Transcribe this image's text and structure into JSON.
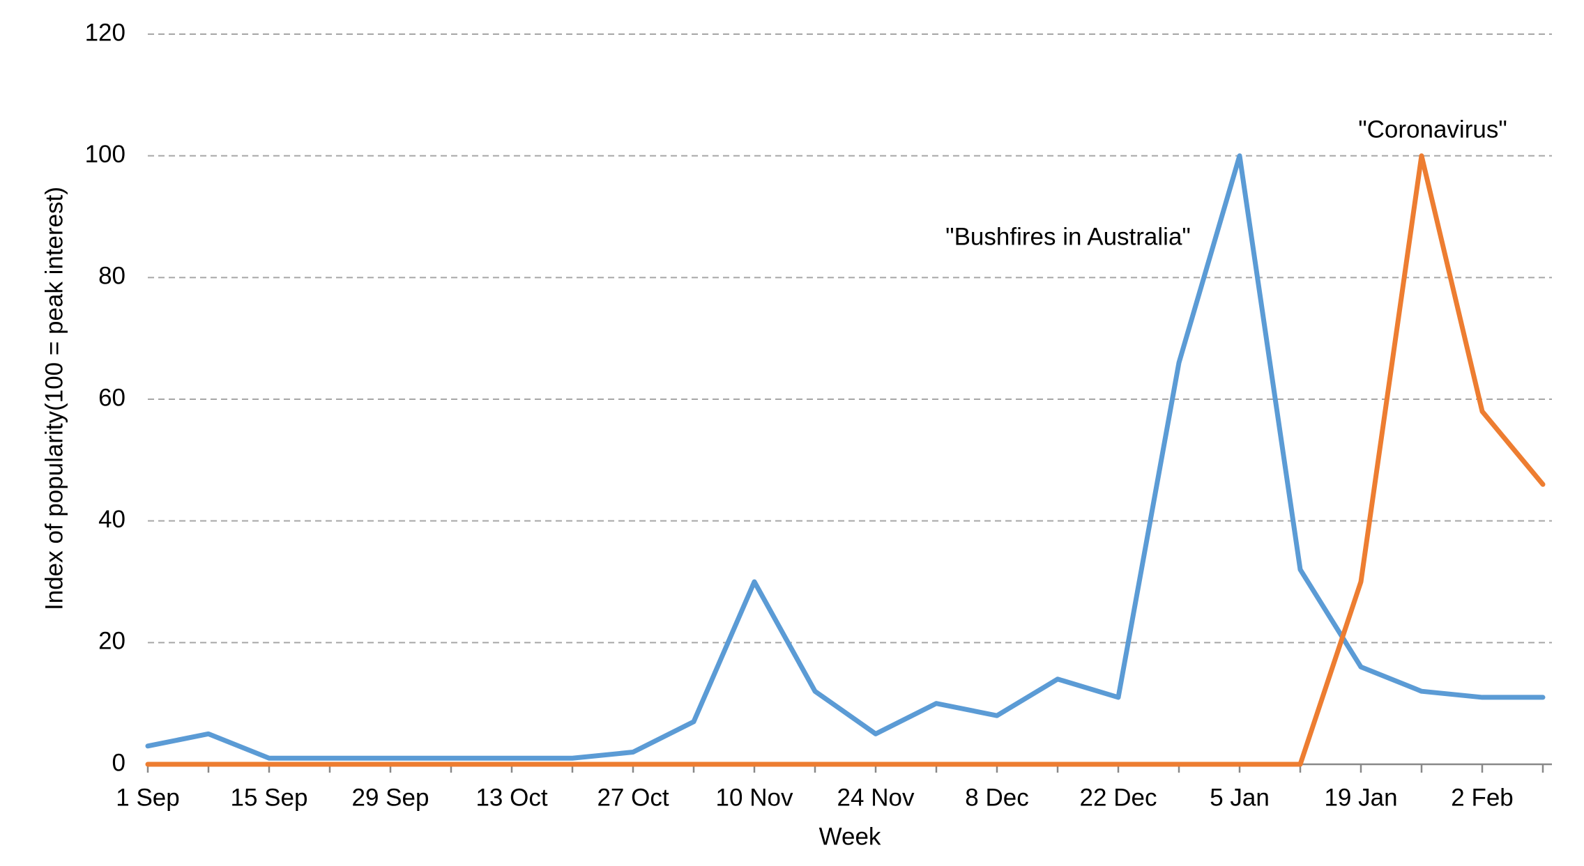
{
  "chart_data": {
    "type": "line",
    "y_label": "Index of popularity(100 = peak interest)",
    "x_label": "Week",
    "categories": [
      "1 Sep",
      null,
      "15 Sep",
      null,
      "29 Sep",
      null,
      "13 Oct",
      null,
      "27 Oct",
      null,
      "10 Nov",
      null,
      "24 Nov",
      null,
      "8 Dec",
      null,
      "22 Dec",
      null,
      "5 Jan",
      null,
      "19 Jan",
      null,
      "2 Feb",
      null
    ],
    "series": [
      {
        "name": "\"Bushfires in Australia\"",
        "color": "#5b9bd5",
        "values": [
          3,
          5,
          1,
          1,
          1,
          1,
          1,
          1,
          2,
          7,
          30,
          12,
          5,
          10,
          8,
          14,
          11,
          66,
          100,
          32,
          16,
          12,
          11,
          11
        ]
      },
      {
        "name": "\"Coronavirus\"",
        "color": "#ed7d31",
        "values": [
          0,
          0,
          0,
          0,
          0,
          0,
          0,
          0,
          0,
          0,
          0,
          0,
          0,
          0,
          0,
          0,
          0,
          0,
          0,
          0,
          30,
          100,
          58,
          46
        ]
      }
    ],
    "ylim": [
      0,
      120
    ],
    "yticks": [
      0,
      20,
      40,
      60,
      80,
      100,
      120
    ],
    "grid": true
  }
}
